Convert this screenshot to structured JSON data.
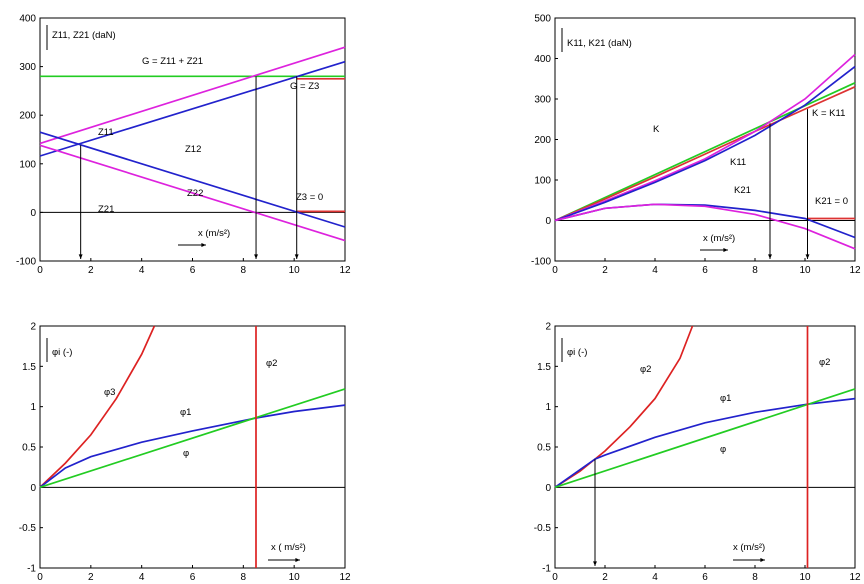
{
  "chart_data": [
    {
      "type": "line",
      "xlim": [
        0,
        12
      ],
      "ylim": [
        -100,
        400
      ],
      "xticks": [
        0,
        2,
        4,
        6,
        8,
        10,
        12
      ],
      "yticks": [
        -100,
        0,
        100,
        200,
        300,
        400
      ],
      "grid": false,
      "series": [
        {
          "name": "G = Z11 + Z21",
          "color": "#22cc22",
          "x": [
            0,
            12
          ],
          "y": [
            280,
            280
          ]
        },
        {
          "name": "",
          "color": "#dd3333",
          "x": [
            10.1,
            12
          ],
          "y": [
            275,
            275
          ]
        },
        {
          "name": "",
          "color": "#dd3333",
          "x": [
            10.1,
            12
          ],
          "y": [
            2,
            2
          ]
        },
        {
          "name": "Z11",
          "color": "#dd22dd",
          "x": [
            0,
            12
          ],
          "y": [
            142,
            340
          ]
        },
        {
          "name": "Z12",
          "color": "#2222cc",
          "x": [
            0,
            12
          ],
          "y": [
            116,
            310
          ]
        },
        {
          "name": "Z22",
          "color": "#2222cc",
          "x": [
            0,
            12
          ],
          "y": [
            165,
            -30
          ]
        },
        {
          "name": "Z21",
          "color": "#dd22dd",
          "x": [
            0,
            12
          ],
          "y": [
            138,
            -58
          ]
        }
      ],
      "annotations": {
        "axis_label": "Z11, Z21 (daN)",
        "sum_label": "G = Z11 + Z21",
        "g_label": "G = Z3",
        "zero_label": "Z3 = 0",
        "x_label": "x (m/s²)",
        "z11": "Z11",
        "z12": "Z12",
        "z22": "Z22",
        "z21": "Z21"
      }
    },
    {
      "type": "line",
      "xlim": [
        0,
        12
      ],
      "ylim": [
        -100,
        500
      ],
      "xticks": [
        0,
        2,
        4,
        6,
        8,
        10,
        12
      ],
      "yticks": [
        -100,
        0,
        100,
        200,
        300,
        400,
        500
      ],
      "grid": false,
      "series": [
        {
          "name": "K",
          "color": "#22cc22",
          "x": [
            0,
            12
          ],
          "y": [
            0,
            340
          ]
        },
        {
          "name": "",
          "color": "#dd3333",
          "x": [
            0,
            2,
            4,
            6,
            8,
            10,
            12
          ],
          "y": [
            0,
            53,
            108,
            164,
            220,
            275,
            330
          ]
        },
        {
          "name": "",
          "color": "#dd3333",
          "x": [
            10.1,
            12
          ],
          "y": [
            5,
            5
          ]
        },
        {
          "name": "K11",
          "color": "#dd22dd",
          "x": [
            0,
            2,
            4,
            6,
            8,
            10,
            12
          ],
          "y": [
            0,
            48,
            98,
            152,
            220,
            300,
            410
          ]
        },
        {
          "name": "",
          "color": "#2222cc",
          "x": [
            0,
            2,
            4,
            6,
            8,
            10,
            12
          ],
          "y": [
            0,
            45,
            94,
            148,
            210,
            285,
            380
          ]
        },
        {
          "name": "K21",
          "color": "#2222cc",
          "x": [
            0,
            2,
            4,
            6,
            8,
            10,
            12
          ],
          "y": [
            0,
            30,
            40,
            38,
            25,
            5,
            -42
          ]
        },
        {
          "name": "",
          "color": "#dd22dd",
          "x": [
            0,
            2,
            4,
            6,
            8,
            10,
            12
          ],
          "y": [
            0,
            30,
            40,
            35,
            15,
            -20,
            -70
          ]
        }
      ],
      "annotations": {
        "axis_label": "K11, K21 (daN)",
        "k": "K",
        "k11": "K11",
        "k21": "K21",
        "k_eq": "K = K11",
        "k_zero": "K21 = 0",
        "x_label": "x (m/s²)"
      }
    },
    {
      "type": "line",
      "xlim": [
        0,
        12
      ],
      "ylim": [
        -1,
        2
      ],
      "xticks": [
        0,
        2,
        4,
        6,
        8,
        10,
        12
      ],
      "yticks": [
        -1,
        -0.5,
        0,
        0.5,
        1,
        1.5,
        2
      ],
      "grid": false,
      "series": [
        {
          "name": "φ3",
          "color": "#dd2222",
          "x": [
            0,
            1,
            2,
            3,
            4,
            4.5
          ],
          "y": [
            0,
            0.3,
            0.65,
            1.1,
            1.65,
            2.0
          ]
        },
        {
          "name": "φ1",
          "color": "#2222cc",
          "x": [
            0,
            1,
            2,
            4,
            6,
            8.5,
            10,
            12
          ],
          "y": [
            0,
            0.24,
            0.38,
            0.56,
            0.7,
            0.86,
            0.94,
            1.02
          ]
        },
        {
          "name": "φ",
          "color": "#22cc22",
          "x": [
            0,
            12
          ],
          "y": [
            0,
            1.22
          ]
        },
        {
          "name": "φ2",
          "color": "#dd2222",
          "x": [
            8.5,
            8.5
          ],
          "y": [
            -1,
            2
          ]
        }
      ],
      "annotations": {
        "axis_label": "φi (-)",
        "phi3": "φ3",
        "phi1": "φ1",
        "phi": "φ",
        "phi2": "φ2",
        "x_label": "x ( m/s²)"
      }
    },
    {
      "type": "line",
      "xlim": [
        0,
        12
      ],
      "ylim": [
        -1,
        2
      ],
      "xticks": [
        0,
        2,
        4,
        6,
        8,
        10,
        12
      ],
      "yticks": [
        -1,
        -0.5,
        0,
        0.5,
        1,
        1.5,
        2
      ],
      "grid": false,
      "series": [
        {
          "name": "φ2",
          "color": "#dd2222",
          "x": [
            0,
            1,
            1.6,
            2,
            3,
            4,
            5,
            5.5
          ],
          "y": [
            0,
            0.2,
            0.35,
            0.45,
            0.75,
            1.1,
            1.6,
            2.0
          ]
        },
        {
          "name": "φ1",
          "color": "#2222cc",
          "x": [
            0,
            1.6,
            2,
            4,
            6,
            8,
            10.1,
            12
          ],
          "y": [
            0,
            0.35,
            0.4,
            0.62,
            0.8,
            0.93,
            1.03,
            1.1
          ]
        },
        {
          "name": "φ",
          "color": "#22cc22",
          "x": [
            0,
            12
          ],
          "y": [
            0,
            1.22
          ]
        },
        {
          "name": "φ2",
          "color": "#dd2222",
          "x": [
            10.1,
            10.1
          ],
          "y": [
            -1,
            2
          ]
        }
      ],
      "annotations": {
        "axis_label": "φi (-)",
        "phi2": "φ2",
        "phi1": "φ1",
        "phi": "φ",
        "phi2v": "φ2",
        "x_label": "x (m/s²)"
      }
    }
  ]
}
